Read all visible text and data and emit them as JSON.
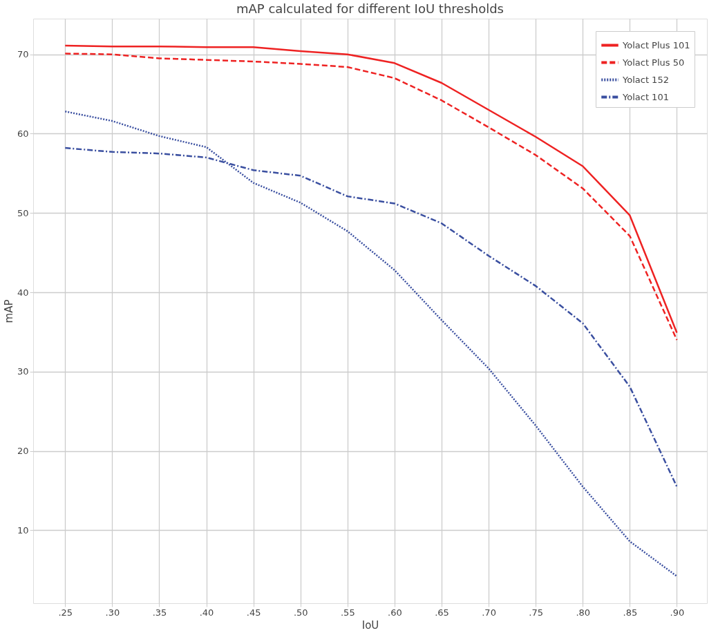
{
  "chart_data": {
    "type": "line",
    "title": "mAP calculated for different IoU thresholds",
    "xlabel": "IoU",
    "ylabel": "mAP",
    "x": [
      0.25,
      0.3,
      0.35,
      0.4,
      0.45,
      0.5,
      0.55,
      0.6,
      0.65,
      0.7,
      0.75,
      0.8,
      0.85,
      0.9
    ],
    "series": [
      {
        "name": "Yolact Plus 101",
        "color": "#ee2222",
        "line_style": "solid",
        "values": [
          71.1,
          71.0,
          71.0,
          70.9,
          70.9,
          70.4,
          70.0,
          68.9,
          66.4,
          63.0,
          59.6,
          55.9,
          49.7,
          34.9
        ]
      },
      {
        "name": "Yolact Plus 50",
        "color": "#ee2222",
        "line_style": "dashed",
        "values": [
          70.1,
          70.0,
          69.5,
          69.3,
          69.1,
          68.8,
          68.4,
          67.0,
          64.2,
          60.8,
          57.3,
          53.1,
          47.1,
          34.0
        ]
      },
      {
        "name": "Yolact 152",
        "color": "#3a4fa0",
        "line_style": "dotted",
        "values": [
          62.8,
          61.6,
          59.7,
          58.3,
          53.8,
          51.3,
          47.7,
          42.8,
          36.5,
          30.4,
          23.2,
          15.5,
          8.6,
          4.2
        ]
      },
      {
        "name": "Yolact 101",
        "color": "#3a4fa0",
        "line_style": "dashdot",
        "values": [
          58.2,
          57.7,
          57.5,
          57.0,
          55.4,
          54.7,
          52.1,
          51.2,
          48.7,
          44.6,
          40.8,
          36.1,
          28.1,
          15.5
        ]
      }
    ],
    "xlim": [
      0.216,
      0.932
    ],
    "ylim": [
      0.8,
      74.5
    ],
    "xticks": [
      {
        "value": 0.25,
        "label": ".25"
      },
      {
        "value": 0.3,
        "label": ".30"
      },
      {
        "value": 0.35,
        "label": ".35"
      },
      {
        "value": 0.4,
        "label": ".40"
      },
      {
        "value": 0.45,
        "label": ".45"
      },
      {
        "value": 0.5,
        "label": ".50"
      },
      {
        "value": 0.55,
        "label": ".55"
      },
      {
        "value": 0.6,
        "label": ".60"
      },
      {
        "value": 0.65,
        "label": ".65"
      },
      {
        "value": 0.7,
        "label": ".70"
      },
      {
        "value": 0.75,
        "label": ".75"
      },
      {
        "value": 0.8,
        "label": ".80"
      },
      {
        "value": 0.85,
        "label": ".85"
      },
      {
        "value": 0.9,
        "label": ".90"
      }
    ],
    "yticks": [
      10,
      20,
      30,
      40,
      50,
      60,
      70
    ],
    "grid": true,
    "legend": "top right",
    "marker": "none"
  }
}
